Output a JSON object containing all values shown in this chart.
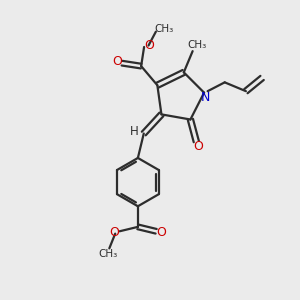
{
  "background_color": "#ebebeb",
  "bond_color": "#2d2d2d",
  "nitrogen_color": "#0000cc",
  "oxygen_color": "#cc0000",
  "line_width": 1.6,
  "figsize": [
    3.0,
    3.0
  ],
  "dpi": 100,
  "xlim": [
    0,
    10
  ],
  "ylim": [
    0,
    10
  ]
}
